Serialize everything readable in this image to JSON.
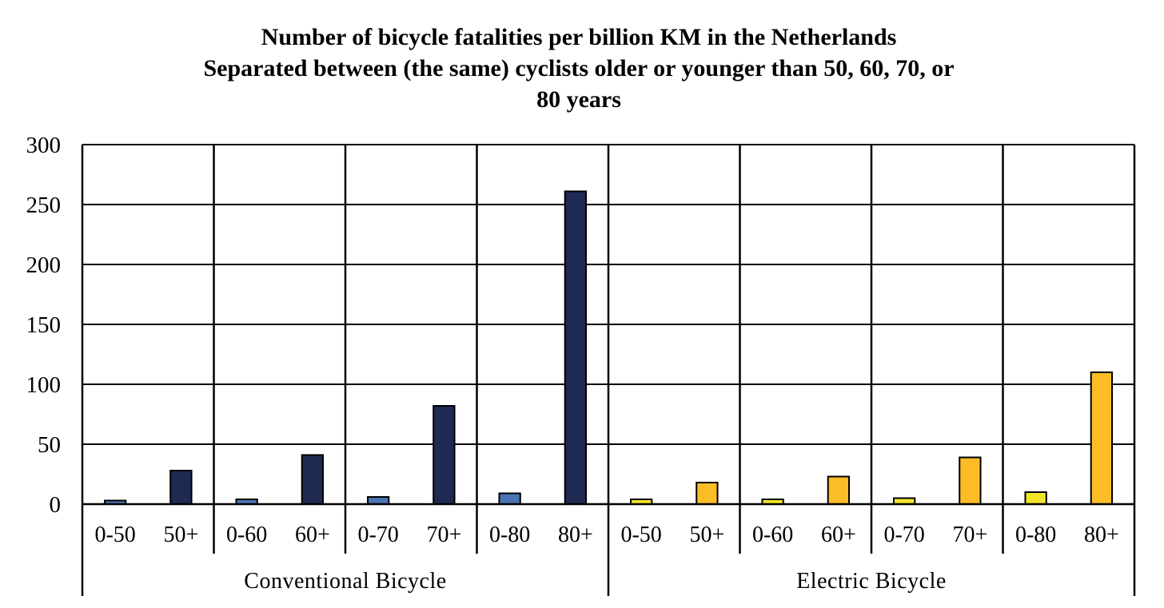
{
  "chart_data": {
    "type": "bar",
    "title": "Number of bicycle fatalities per billion KM in the Netherlands",
    "subtitle_lines": [
      "Separated between (the same) cyclists older or younger than 50, 60, 70, or",
      "80 years"
    ],
    "xlabel": "",
    "ylabel": "",
    "ylim": [
      0,
      300
    ],
    "yticks": [
      0,
      50,
      100,
      150,
      200,
      250,
      300
    ],
    "grid": true,
    "groups": [
      {
        "label": "Conventional Bicycle",
        "young_color": "#4a74b4",
        "old_color": "#1e2a52",
        "pairs": [
          {
            "young_label": "0-50",
            "young_value": 3,
            "old_label": "50+",
            "old_value": 28
          },
          {
            "young_label": "0-60",
            "young_value": 4,
            "old_label": "60+",
            "old_value": 41
          },
          {
            "young_label": "0-70",
            "young_value": 6,
            "old_label": "70+",
            "old_value": 82
          },
          {
            "young_label": "0-80",
            "young_value": 9,
            "old_label": "80+",
            "old_value": 261
          }
        ]
      },
      {
        "label": "Electric Bicycle",
        "young_color": "#f3e62a",
        "old_color": "#fbbd26",
        "pairs": [
          {
            "young_label": "0-50",
            "young_value": 4,
            "old_label": "50+",
            "old_value": 18
          },
          {
            "young_label": "0-60",
            "young_value": 4,
            "old_label": "60+",
            "old_value": 23
          },
          {
            "young_label": "0-70",
            "young_value": 5,
            "old_label": "70+",
            "old_value": 39
          },
          {
            "young_label": "0-80",
            "young_value": 10,
            "old_label": "80+",
            "old_value": 110
          }
        ]
      }
    ]
  }
}
